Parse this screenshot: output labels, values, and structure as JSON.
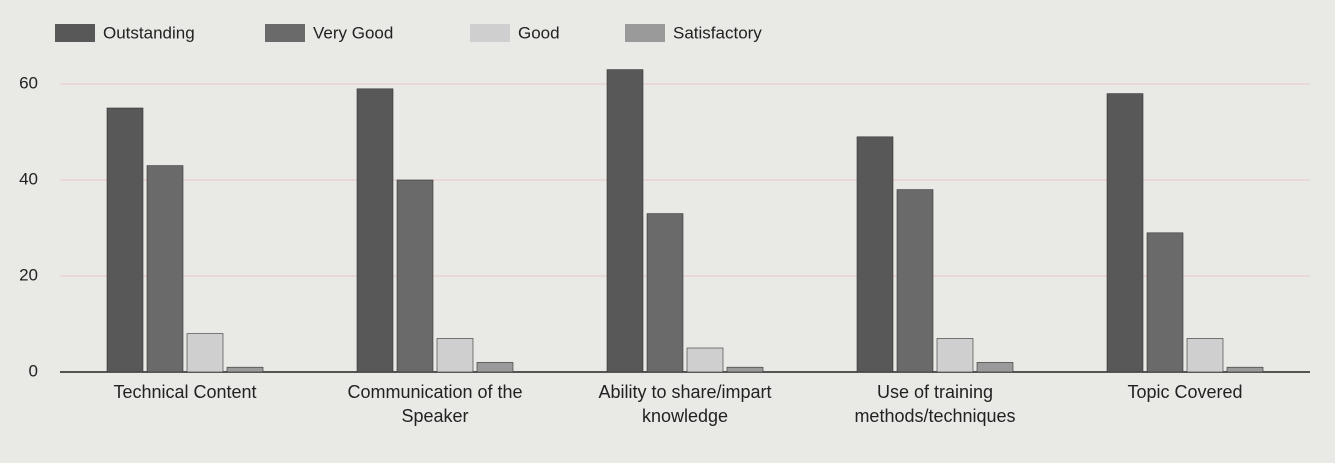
{
  "chart_data": {
    "type": "bar",
    "categories": [
      "Technical Content",
      "Communication of the Speaker",
      "Ability to share/impart knowledge",
      "Use of training methods/techniques",
      "Topic Covered"
    ],
    "series": [
      {
        "name": "Outstanding",
        "color": "#585858",
        "values": [
          55,
          59,
          63,
          49,
          58
        ]
      },
      {
        "name": "Very Good",
        "color": "#6a6a6a",
        "values": [
          43,
          40,
          33,
          38,
          29
        ]
      },
      {
        "name": "Good",
        "color": "#cfcfcf",
        "values": [
          8,
          7,
          5,
          7,
          7
        ]
      },
      {
        "name": "Satisfactory",
        "color": "#9a9a9a",
        "values": [
          1,
          2,
          1,
          2,
          1
        ]
      }
    ],
    "ylim": [
      0,
      65
    ],
    "yticks": [
      0,
      20,
      40,
      60
    ],
    "grid": true,
    "legend": "top-left"
  }
}
